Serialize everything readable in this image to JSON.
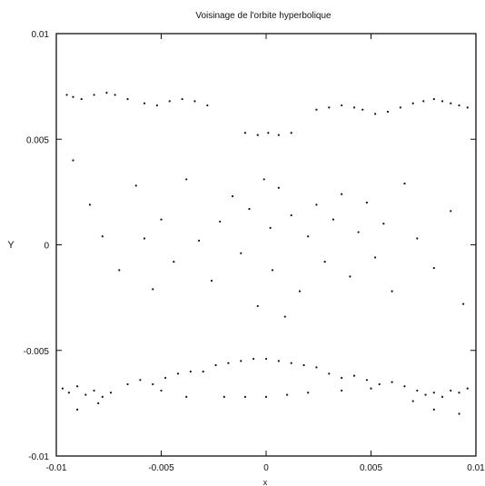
{
  "chart_data": {
    "type": "scatter",
    "title": "Voisinage de l'orbite hyperbolique",
    "xlabel": "x",
    "ylabel": "Y",
    "xlim": [
      -0.01,
      0.01
    ],
    "ylim": [
      -0.01,
      0.01
    ],
    "x_ticks": [
      -0.01,
      -0.005,
      0,
      0.005,
      0.01
    ],
    "y_ticks": [
      -0.01,
      -0.005,
      0,
      0.005,
      0.01
    ],
    "x_tick_labels": [
      "-0.01",
      "-0.005",
      "0",
      "0.005",
      "0.01"
    ],
    "y_tick_labels": [
      "-0.01",
      "-0.005",
      "0",
      "0.005",
      "0.01"
    ],
    "grid": false,
    "legend": "none",
    "marker_color": "#111111",
    "series": [
      {
        "points": [
          [
            -0.0095,
            0.0071
          ],
          [
            -0.0092,
            0.007
          ],
          [
            -0.0088,
            0.0069
          ],
          [
            -0.0082,
            0.0071
          ],
          [
            -0.0076,
            0.0072
          ],
          [
            -0.0072,
            0.0071
          ],
          [
            -0.0066,
            0.0069
          ],
          [
            -0.0058,
            0.0067
          ],
          [
            -0.0052,
            0.0066
          ],
          [
            -0.0046,
            0.0068
          ],
          [
            -0.004,
            0.0069
          ],
          [
            -0.0034,
            0.0068
          ],
          [
            -0.0028,
            0.0066
          ],
          [
            -0.001,
            0.0053
          ],
          [
            -0.0004,
            0.0052
          ],
          [
            0.0001,
            0.0053
          ],
          [
            0.0006,
            0.0052
          ],
          [
            0.0012,
            0.0053
          ],
          [
            0.0024,
            0.0064
          ],
          [
            0.003,
            0.0065
          ],
          [
            0.0036,
            0.0066
          ],
          [
            0.0042,
            0.0065
          ],
          [
            0.0046,
            0.0064
          ],
          [
            0.0052,
            0.0062
          ],
          [
            0.0058,
            0.0063
          ],
          [
            0.0064,
            0.0065
          ],
          [
            0.007,
            0.0067
          ],
          [
            0.0075,
            0.0068
          ],
          [
            0.008,
            0.0069
          ],
          [
            0.0084,
            0.0068
          ],
          [
            0.0088,
            0.0067
          ],
          [
            0.0092,
            0.0066
          ],
          [
            0.0096,
            0.0065
          ],
          [
            -0.0092,
            0.004
          ],
          [
            -0.0084,
            0.0019
          ],
          [
            -0.0078,
            0.0004
          ],
          [
            -0.007,
            -0.0012
          ],
          [
            -0.0062,
            0.0028
          ],
          [
            -0.0058,
            0.0003
          ],
          [
            -0.0054,
            -0.0021
          ],
          [
            -0.005,
            0.0012
          ],
          [
            -0.0044,
            -0.0008
          ],
          [
            -0.0038,
            0.0031
          ],
          [
            -0.0032,
            0.0002
          ],
          [
            -0.0026,
            -0.0017
          ],
          [
            -0.0022,
            0.0011
          ],
          [
            -0.0016,
            0.0023
          ],
          [
            -0.0012,
            -0.0004
          ],
          [
            -0.0008,
            0.0017
          ],
          [
            -0.0004,
            -0.0029
          ],
          [
            -0.0001,
            0.0031
          ],
          [
            0.0002,
            0.0008
          ],
          [
            0.0003,
            -0.0012
          ],
          [
            0.0006,
            0.0027
          ],
          [
            0.0009,
            -0.0034
          ],
          [
            0.0012,
            0.0014
          ],
          [
            0.0016,
            -0.0022
          ],
          [
            0.002,
            0.0004
          ],
          [
            0.0024,
            0.0019
          ],
          [
            0.0028,
            -0.0008
          ],
          [
            0.0032,
            0.0012
          ],
          [
            0.0036,
            0.0024
          ],
          [
            0.004,
            -0.0015
          ],
          [
            0.0044,
            0.0006
          ],
          [
            0.0048,
            0.002
          ],
          [
            0.0052,
            -0.0006
          ],
          [
            0.0056,
            0.001
          ],
          [
            0.006,
            -0.0022
          ],
          [
            0.0066,
            0.0029
          ],
          [
            0.0072,
            0.0003
          ],
          [
            0.008,
            -0.0011
          ],
          [
            0.0088,
            0.0016
          ],
          [
            0.0094,
            -0.0028
          ],
          [
            -0.0097,
            -0.0068
          ],
          [
            -0.0094,
            -0.007
          ],
          [
            -0.009,
            -0.0067
          ],
          [
            -0.0086,
            -0.0071
          ],
          [
            -0.0082,
            -0.0069
          ],
          [
            -0.0078,
            -0.0072
          ],
          [
            -0.0074,
            -0.007
          ],
          [
            -0.0066,
            -0.0066
          ],
          [
            -0.006,
            -0.0064
          ],
          [
            -0.0054,
            -0.0066
          ],
          [
            -0.0048,
            -0.0063
          ],
          [
            -0.0042,
            -0.0061
          ],
          [
            -0.0036,
            -0.006
          ],
          [
            -0.003,
            -0.006
          ],
          [
            -0.0024,
            -0.0057
          ],
          [
            -0.0018,
            -0.0056
          ],
          [
            -0.0012,
            -0.0055
          ],
          [
            -0.0006,
            -0.0054
          ],
          [
            0.0,
            -0.0054
          ],
          [
            0.0006,
            -0.0055
          ],
          [
            0.0012,
            -0.0056
          ],
          [
            0.0018,
            -0.0057
          ],
          [
            0.0024,
            -0.0058
          ],
          [
            0.003,
            -0.0061
          ],
          [
            0.0036,
            -0.0063
          ],
          [
            0.0042,
            -0.0062
          ],
          [
            0.0048,
            -0.0064
          ],
          [
            0.0054,
            -0.0066
          ],
          [
            0.006,
            -0.0065
          ],
          [
            0.0066,
            -0.0067
          ],
          [
            0.0072,
            -0.0069
          ],
          [
            0.0076,
            -0.0071
          ],
          [
            0.008,
            -0.007
          ],
          [
            0.0084,
            -0.0072
          ],
          [
            0.0088,
            -0.0069
          ],
          [
            0.0092,
            -0.007
          ],
          [
            0.0096,
            -0.0068
          ],
          [
            -0.009,
            -0.0078
          ],
          [
            -0.008,
            -0.0075
          ],
          [
            -0.005,
            -0.0069
          ],
          [
            -0.0038,
            -0.0072
          ],
          [
            -0.002,
            -0.0072
          ],
          [
            -0.001,
            -0.0072
          ],
          [
            0.0,
            -0.0072
          ],
          [
            0.001,
            -0.0071
          ],
          [
            0.002,
            -0.007
          ],
          [
            0.0036,
            -0.0069
          ],
          [
            0.005,
            -0.0068
          ],
          [
            0.007,
            -0.0074
          ],
          [
            0.008,
            -0.0078
          ],
          [
            0.0092,
            -0.008
          ]
        ]
      }
    ]
  }
}
